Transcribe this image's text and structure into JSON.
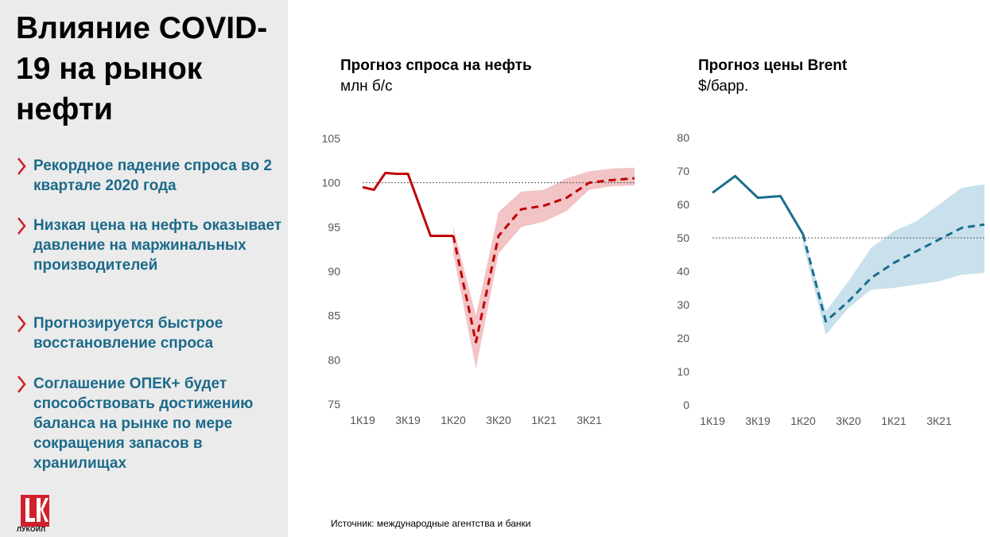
{
  "title": "Влияние COVID-19 на рынок нефти",
  "bullets": [
    "Рекордное падение спроса во 2 квартале 2020 года",
    "Низкая цена на нефть оказывает давление на маржинальных производителей",
    "Прогнозируется быстрое восстановление спроса",
    "Соглашение ОПЕК+ будет способствовать достижению баланса на рынке по мере сокращения запасов в хранилищах"
  ],
  "logo_text": "ЛУКОЙЛ",
  "source": "Источник: международные агентства и банки",
  "colors": {
    "demand": "#c00000",
    "demand_band": "#f2c4c6",
    "brent": "#1a6d8f",
    "brent_band": "#c9e1ec",
    "bullet_text": "#1c6a8a",
    "chevron": "#d1202b"
  },
  "chart_data": [
    {
      "type": "line",
      "title": "Прогноз спроса на нефть",
      "unit": "млн б/с",
      "ylim": [
        75,
        105
      ],
      "yticks": [
        75,
        80,
        85,
        90,
        95,
        100,
        105
      ],
      "x_labels": [
        "1К19",
        "3К19",
        "1К20",
        "3К20",
        "1К21",
        "3К21"
      ],
      "x_label_quarters": [
        0,
        2,
        4,
        6,
        8,
        10
      ],
      "reference_line": 100,
      "series": [
        {
          "style": "actual",
          "x": [
            0,
            0.5,
            1,
            1.5,
            2,
            2.5,
            3,
            4
          ],
          "y": [
            99.5,
            99.2,
            101.1,
            101.0,
            101.0,
            97.5,
            94.0,
            94.0
          ]
        },
        {
          "style": "forecast",
          "x": [
            4,
            5,
            6,
            7,
            8,
            9,
            10,
            11,
            12
          ],
          "y": [
            94.0,
            82.0,
            94.0,
            97.0,
            97.4,
            98.3,
            100.0,
            100.3,
            100.5
          ]
        }
      ],
      "band": {
        "x": [
          4,
          5,
          6,
          7,
          8,
          9,
          10,
          11,
          12
        ],
        "low": [
          92.0,
          79.0,
          92.0,
          95.0,
          95.6,
          96.8,
          99.2,
          99.6,
          99.7
        ],
        "high": [
          95.0,
          85.0,
          96.7,
          99.0,
          99.2,
          100.5,
          101.3,
          101.6,
          101.7
        ]
      }
    },
    {
      "type": "line",
      "title": "Прогноз цены Brent",
      "unit": "$/барр.",
      "ylim": [
        0,
        80
      ],
      "yticks": [
        0,
        10,
        20,
        30,
        40,
        50,
        60,
        70,
        80
      ],
      "x_labels": [
        "1К19",
        "3К19",
        "1К20",
        "3К20",
        "1К21",
        "3К21"
      ],
      "x_label_quarters": [
        0,
        2,
        4,
        6,
        8,
        10
      ],
      "reference_line": 50,
      "series": [
        {
          "style": "actual",
          "x": [
            0,
            1,
            2,
            3,
            4
          ],
          "y": [
            63.5,
            68.5,
            62.0,
            62.5,
            51.0
          ]
        },
        {
          "style": "forecast",
          "x": [
            4,
            5,
            6,
            7,
            8,
            9,
            10,
            11,
            12
          ],
          "y": [
            51.0,
            25.0,
            31.0,
            38.0,
            42.5,
            46.0,
            49.5,
            53.0,
            54.0
          ]
        }
      ],
      "band": {
        "x": [
          4,
          5,
          6,
          7,
          8,
          9,
          10,
          11,
          12
        ],
        "low": [
          48.0,
          21.0,
          29.0,
          34.5,
          35.0,
          36.0,
          37.0,
          39.0,
          39.5
        ],
        "high": [
          51.0,
          28.0,
          37.0,
          47.0,
          52.0,
          55.0,
          60.0,
          65.0,
          66.0
        ]
      }
    }
  ]
}
